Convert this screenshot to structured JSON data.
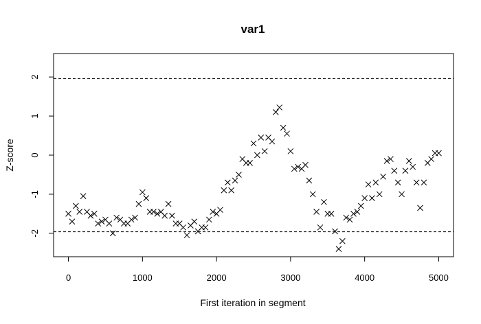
{
  "chart_data": {
    "type": "scatter",
    "title": "var1",
    "xlabel": "First iteration in segment",
    "ylabel": "Z-score",
    "xlim": [
      -200,
      5200
    ],
    "ylim": [
      -2.6,
      2.6
    ],
    "x_ticks": [
      0,
      1000,
      2000,
      3000,
      4000,
      5000
    ],
    "y_ticks": [
      -2,
      -1,
      0,
      1,
      2
    ],
    "reference_lines": [
      1.96,
      -1.96
    ],
    "marker": "x",
    "color": "#000000",
    "series": [
      {
        "x": [
          0,
          50,
          100,
          150,
          200,
          250,
          300,
          350,
          400,
          450,
          500,
          550,
          600,
          650,
          700,
          750,
          800,
          850,
          900,
          950,
          1000,
          1050,
          1100,
          1150,
          1200,
          1250,
          1300,
          1350,
          1400,
          1450,
          1500,
          1550,
          1600,
          1650,
          1700,
          1750,
          1800,
          1850,
          1900,
          1950,
          2000,
          2050,
          2100,
          2150,
          2200,
          2250,
          2300,
          2350,
          2400,
          2450,
          2500,
          2550,
          2600,
          2650,
          2700,
          2750,
          2800,
          2850,
          2900,
          2950,
          3000,
          3050,
          3100,
          3150,
          3200,
          3250,
          3300,
          3350,
          3400,
          3450,
          3500,
          3550,
          3600,
          3650,
          3700,
          3750,
          3800,
          3850,
          3900,
          3950,
          4000,
          4050,
          4100,
          4150,
          4200,
          4250,
          4300,
          4350,
          4400,
          4450,
          4500,
          4550,
          4600,
          4650,
          4700,
          4750,
          4800,
          4850,
          4900,
          4950,
          5000
        ],
        "y": [
          -1.5,
          -1.7,
          -1.3,
          -1.45,
          -1.05,
          -1.45,
          -1.55,
          -1.5,
          -1.75,
          -1.7,
          -1.65,
          -1.75,
          -2.0,
          -1.6,
          -1.65,
          -1.75,
          -1.75,
          -1.65,
          -1.6,
          -1.25,
          -0.95,
          -1.1,
          -1.45,
          -1.45,
          -1.5,
          -1.45,
          -1.55,
          -1.25,
          -1.55,
          -1.75,
          -1.75,
          -1.85,
          -2.05,
          -1.8,
          -1.7,
          -1.95,
          -1.85,
          -1.85,
          -1.65,
          -1.45,
          -1.5,
          -1.4,
          -0.9,
          -0.7,
          -0.9,
          -0.65,
          -0.5,
          -0.1,
          -0.2,
          -0.2,
          0.3,
          0.0,
          0.45,
          0.1,
          0.45,
          0.35,
          1.1,
          1.22,
          0.7,
          0.55,
          0.1,
          -0.35,
          -0.3,
          -0.35,
          -0.25,
          -0.65,
          -1.0,
          -1.45,
          -1.85,
          -1.2,
          -1.5,
          -1.5,
          -1.95,
          -2.4,
          -2.2,
          -1.6,
          -1.65,
          -1.5,
          -1.45,
          -1.3,
          -1.1,
          -0.75,
          -1.1,
          -0.7,
          -1.0,
          -0.55,
          -0.15,
          -0.1,
          -0.4,
          -0.7,
          -1.0,
          -0.4,
          -0.15,
          -0.3,
          -0.7,
          -1.35,
          -0.7,
          -0.2,
          -0.1,
          0.05,
          0.05
        ]
      }
    ]
  }
}
